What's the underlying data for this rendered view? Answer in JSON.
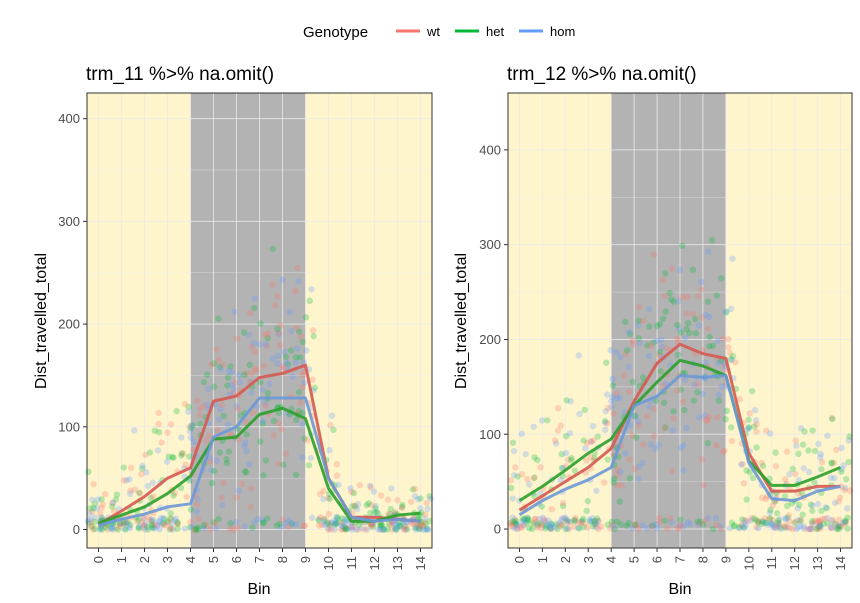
{
  "legend": {
    "title": "Genotype",
    "items": [
      {
        "label": "wt",
        "color": "#F8766D"
      },
      {
        "label": "het",
        "color": "#00BA38"
      },
      {
        "label": "hom",
        "color": "#619CFF"
      }
    ]
  },
  "colors": {
    "day_shade": "#FFF5CC",
    "night_shade": "#B3B3B3",
    "grid": "#EBEBEB",
    "mean_wt": "#D45A52",
    "mean_het": "#2CA02C",
    "mean_hom": "#6E98D6"
  },
  "chart_data": [
    {
      "type": "scatter",
      "title": "trm_11 %>% na.omit()",
      "xlabel": "Bin",
      "ylabel": "Dist_travelled_total",
      "x_ticks": [
        "0",
        "1",
        "2",
        "3",
        "4",
        "5",
        "6",
        "7",
        "8",
        "9",
        "10",
        "11",
        "12",
        "13",
        "14"
      ],
      "y_ticks": [
        "0",
        "100",
        "200",
        "300",
        "400"
      ],
      "xlim": [
        -0.5,
        14.5
      ],
      "ylim": [
        -18,
        425
      ],
      "grid": true,
      "legend_position": "top",
      "shaded_regions": [
        {
          "from": -0.5,
          "to": 4,
          "kind": "day"
        },
        {
          "from": 4,
          "to": 9,
          "kind": "night"
        },
        {
          "from": 9,
          "to": 14.5,
          "kind": "day"
        }
      ],
      "series": [
        {
          "name": "wt",
          "kind": "mean_line",
          "x": [
            0,
            1,
            2,
            3,
            4,
            5,
            6,
            7,
            8,
            9,
            10,
            11,
            12,
            13,
            14
          ],
          "y": [
            5,
            18,
            32,
            50,
            60,
            125,
            130,
            148,
            152,
            160,
            50,
            12,
            12,
            10,
            8
          ]
        },
        {
          "name": "het",
          "kind": "smooth_line",
          "x": [
            0,
            1,
            2,
            3,
            4,
            5,
            6,
            7,
            8,
            9,
            10,
            11,
            12,
            13,
            14
          ],
          "y": [
            6,
            14,
            22,
            35,
            52,
            88,
            90,
            112,
            118,
            108,
            40,
            8,
            8,
            14,
            16
          ]
        },
        {
          "name": "hom",
          "kind": "smooth_line",
          "x": [
            0,
            1,
            2,
            3,
            4,
            5,
            6,
            7,
            8,
            9,
            10,
            11,
            12,
            13,
            14
          ],
          "y": [
            4,
            10,
            15,
            22,
            25,
            90,
            100,
            128,
            128,
            128,
            50,
            12,
            8,
            10,
            8
          ]
        }
      ],
      "points_profile": {
        "mean": [
          15,
          28,
          40,
          55,
          70,
          110,
          125,
          140,
          150,
          150,
          55,
          15,
          13,
          13,
          12
        ],
        "spread": [
          30,
          45,
          55,
          65,
          75,
          90,
          95,
          100,
          100,
          100,
          70,
          30,
          28,
          28,
          28
        ],
        "points_per_bin": 48
      }
    },
    {
      "type": "scatter",
      "title": "trm_12 %>% na.omit()",
      "xlabel": "Bin",
      "ylabel": "Dist_travelled_total",
      "x_ticks": [
        "0",
        "1",
        "2",
        "3",
        "4",
        "5",
        "6",
        "7",
        "8",
        "9",
        "10",
        "11",
        "12",
        "13",
        "14"
      ],
      "y_ticks": [
        "0",
        "100",
        "200",
        "300",
        "400"
      ],
      "xlim": [
        -0.5,
        14.5
      ],
      "ylim": [
        -20,
        460
      ],
      "grid": true,
      "legend_position": "top",
      "shaded_regions": [
        {
          "from": -0.5,
          "to": 4,
          "kind": "day"
        },
        {
          "from": 4,
          "to": 9,
          "kind": "night"
        },
        {
          "from": 9,
          "to": 14.5,
          "kind": "day"
        }
      ],
      "series": [
        {
          "name": "wt",
          "kind": "mean_line",
          "x": [
            0,
            1,
            2,
            3,
            4,
            5,
            6,
            7,
            8,
            9,
            10,
            11,
            12,
            13,
            14
          ],
          "y": [
            20,
            35,
            50,
            65,
            85,
            135,
            175,
            195,
            185,
            180,
            80,
            40,
            40,
            45,
            45
          ]
        },
        {
          "name": "het",
          "kind": "smooth_line",
          "x": [
            0,
            1,
            2,
            3,
            4,
            5,
            6,
            7,
            8,
            9,
            10,
            11,
            12,
            13,
            14
          ],
          "y": [
            30,
            45,
            62,
            80,
            95,
            130,
            155,
            178,
            172,
            162,
            72,
            46,
            46,
            55,
            65
          ]
        },
        {
          "name": "hom",
          "kind": "smooth_line",
          "x": [
            0,
            1,
            2,
            3,
            4,
            5,
            6,
            7,
            8,
            9,
            10,
            11,
            12,
            13,
            14
          ],
          "y": [
            15,
            30,
            42,
            52,
            65,
            130,
            140,
            162,
            160,
            162,
            70,
            32,
            30,
            40,
            45
          ]
        }
      ],
      "points_profile": {
        "mean": [
          35,
          50,
          70,
          85,
          100,
          150,
          170,
          185,
          180,
          175,
          80,
          45,
          45,
          55,
          55
        ],
        "spread": [
          50,
          65,
          80,
          90,
          100,
          110,
          115,
          115,
          115,
          110,
          80,
          60,
          60,
          65,
          65
        ],
        "points_per_bin": 48
      }
    }
  ]
}
